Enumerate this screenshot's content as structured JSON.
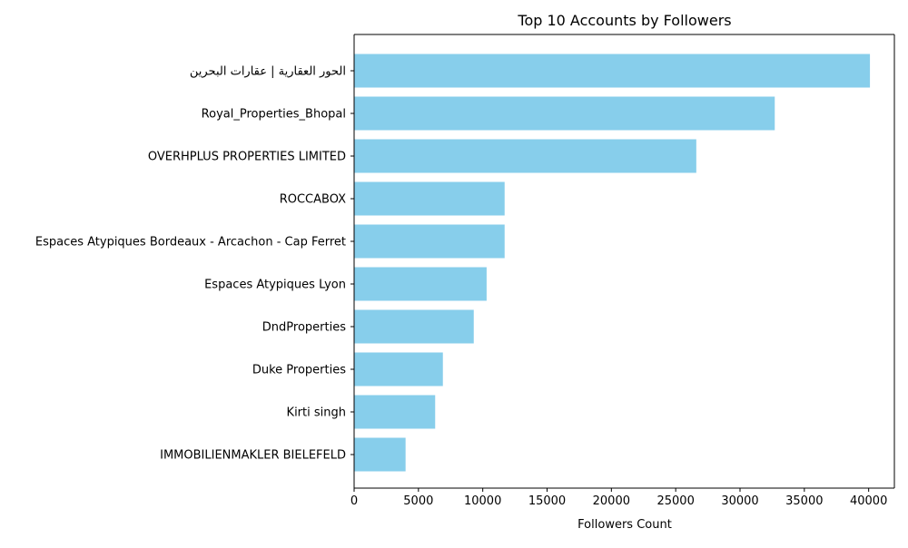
{
  "chart_data": {
    "type": "bar",
    "orientation": "horizontal",
    "title": "Top 10 Accounts by Followers",
    "xlabel": "Followers Count",
    "ylabel": "",
    "xlim": [
      0,
      42000
    ],
    "x_ticks": [
      "0",
      "5000",
      "10000",
      "15000",
      "20000",
      "25000",
      "30000",
      "35000",
      "40000"
    ],
    "categories": [
      "الحور العقارية | عقارات البحرين",
      "Royal_Properties_Bhopal",
      "OVERHPLUS PROPERTIES LIMITED",
      "ROCCABOX",
      "Espaces Atypiques Bordeaux - Arcachon - Cap Ferret",
      "Espaces Atypiques Lyon",
      "DndProperties",
      "Duke Properties",
      "Kirti singh",
      "IMMOBILIENMAKLER BIELEFELD"
    ],
    "values": [
      40100,
      32700,
      26600,
      11700,
      11700,
      10300,
      9300,
      6900,
      6300,
      4000
    ],
    "bar_color": "#87CEEB",
    "grid": false,
    "legend": "none"
  }
}
